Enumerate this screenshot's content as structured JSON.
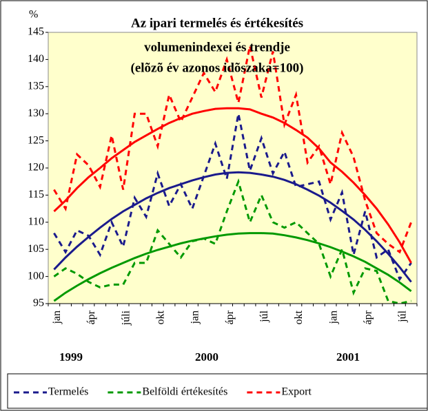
{
  "chart_data": {
    "type": "line",
    "title": [
      "Az ipari termelés és értékesítés",
      "volumenindexei és trendje",
      "(elõzõ év azonos idõszaka=100)"
    ],
    "y_label": "%",
    "categories": [
      "jan",
      null,
      null,
      "ápr",
      null,
      null,
      "júli",
      null,
      null,
      "okt",
      null,
      null,
      "jan",
      null,
      null,
      "ápr",
      null,
      null,
      "júl",
      null,
      null,
      "okt",
      null,
      null,
      "jan",
      null,
      null,
      "ápr",
      null,
      null,
      "júl",
      null
    ],
    "year_labels": [
      "1999",
      "2000",
      "2001"
    ],
    "series": [
      {
        "name": "Termelés",
        "color": "#1a1a8c",
        "style": "dashed",
        "values": [
          108,
          104.5,
          108.5,
          107.5,
          104,
          110,
          105.5,
          114.5,
          111,
          119,
          113,
          117,
          112.5,
          118.5,
          124.5,
          118,
          130,
          119.5,
          125.5,
          119,
          123,
          116.5,
          117,
          117.5,
          110.5,
          115.5,
          104,
          112,
          103.5,
          105,
          99.5,
          102.5
        ]
      },
      {
        "name": "Belföldi értékesítés",
        "color": "#009900",
        "style": "dashed",
        "values": [
          100,
          101.5,
          100.5,
          99,
          98,
          98.5,
          98.5,
          102.5,
          102.5,
          108.5,
          106,
          103.5,
          106.5,
          107,
          106,
          112,
          117.5,
          110,
          115,
          110,
          109,
          110,
          108,
          106,
          100,
          105,
          97,
          101.5,
          101,
          95.5,
          95,
          95.5
        ]
      },
      {
        "name": "Export",
        "color": "#ff0000",
        "style": "dashed",
        "values": [
          116,
          112.5,
          122.5,
          120.5,
          116.5,
          126,
          116,
          130,
          130,
          124,
          133.5,
          128.5,
          133,
          137.5,
          134,
          140,
          132,
          142.5,
          133,
          141.5,
          128,
          133.5,
          121,
          124,
          117,
          126.5,
          122,
          114,
          108,
          106,
          104.5,
          110
        ]
      },
      {
        "color": "#1a1a8c",
        "style": "solid",
        "values": [
          101.3,
          103.5,
          105.5,
          107.3,
          109,
          110.6,
          112,
          113.2,
          114.4,
          115.4,
          116.3,
          117,
          117.7,
          118.3,
          118.8,
          119.1,
          119.2,
          119.1,
          118.8,
          118.4,
          117.8,
          117,
          116,
          114.9,
          113.6,
          112.1,
          110.5,
          108.6,
          106.5,
          104.2,
          101.7,
          99
        ]
      },
      {
        "color": "#009900",
        "style": "solid",
        "values": [
          95.5,
          97,
          98.3,
          99.5,
          100.6,
          101.6,
          102.5,
          103.4,
          104.2,
          104.9,
          105.5,
          106.1,
          106.6,
          107,
          107.4,
          107.7,
          107.9,
          108,
          108,
          107.9,
          107.6,
          107.2,
          106.7,
          106.1,
          105.4,
          104.6,
          103.7,
          102.7,
          101.5,
          100.3,
          98.9,
          97.3
        ]
      },
      {
        "color": "#ff0000",
        "style": "solid",
        "values": [
          112,
          114,
          116.3,
          118.3,
          120,
          121.8,
          123.3,
          124.8,
          126,
          127.2,
          128.3,
          129.2,
          130,
          130.5,
          130.9,
          131,
          131,
          130.8,
          130,
          129.3,
          128.3,
          127,
          125.6,
          123.6,
          121,
          119.3,
          117.3,
          115,
          112.5,
          109.6,
          106.3,
          102.5
        ]
      }
    ],
    "ylim": [
      95,
      145
    ],
    "yticks": [
      95,
      100,
      105,
      110,
      115,
      120,
      125,
      130,
      135,
      140,
      145
    ],
    "background": "#ffffcc"
  }
}
